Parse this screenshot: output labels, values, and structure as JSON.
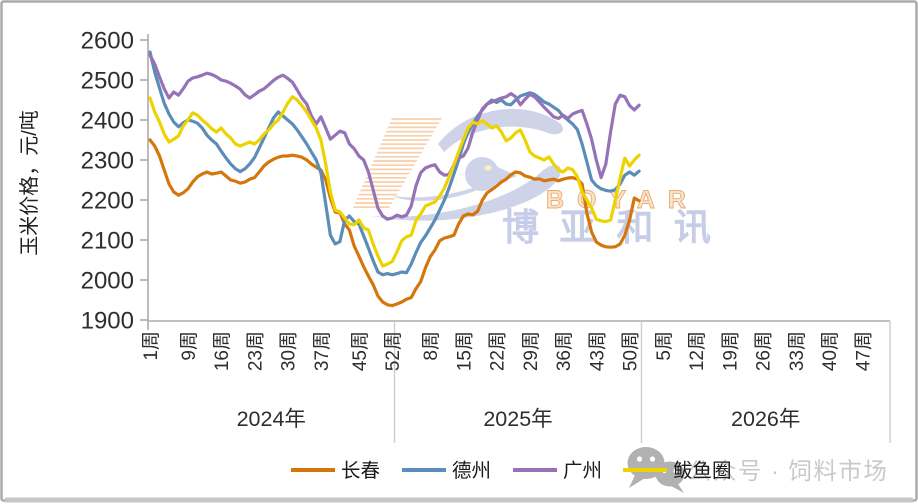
{
  "chart_data": {
    "type": "line",
    "title": "",
    "ylabel": "玉米价格，元/吨",
    "ylim": [
      1900,
      2600
    ],
    "yticks": [
      2600,
      2500,
      2400,
      2300,
      2200,
      2100,
      2000,
      1900
    ],
    "grid": false,
    "legend_position": "bottom",
    "x_axis": {
      "total_weeks": 156,
      "groups": [
        {
          "year_label": "2024年",
          "week_offset": 0,
          "tick_weeks": [
            1,
            9,
            16,
            23,
            30,
            37,
            45,
            52
          ],
          "tick_labels": [
            "1周",
            "9周",
            "16周",
            "23周",
            "30周",
            "37周",
            "45周",
            "52周"
          ]
        },
        {
          "year_label": "2025年",
          "week_offset": 52,
          "tick_weeks": [
            8,
            15,
            22,
            29,
            36,
            43,
            50
          ],
          "tick_labels": [
            "8周",
            "15周",
            "22周",
            "29周",
            "36周",
            "43周",
            "50周"
          ]
        },
        {
          "year_label": "2026年",
          "week_offset": 104,
          "tick_weeks": [
            5,
            12,
            19,
            26,
            33,
            40,
            47
          ],
          "tick_labels": [
            "5周",
            "12周",
            "19周",
            "26周",
            "33周",
            "40周",
            "47周"
          ]
        }
      ]
    },
    "series": [
      {
        "name": "长春",
        "key": "changchun",
        "color": "#D5760D",
        "start_index": 0,
        "values": [
          2350,
          2335,
          2310,
          2275,
          2240,
          2220,
          2212,
          2218,
          2228,
          2245,
          2258,
          2265,
          2270,
          2265,
          2267,
          2270,
          2260,
          2250,
          2247,
          2242,
          2245,
          2252,
          2256,
          2270,
          2285,
          2295,
          2302,
          2307,
          2310,
          2310,
          2312,
          2310,
          2307,
          2300,
          2290,
          2282,
          2275,
          2250,
          2205,
          2170,
          2168,
          2140,
          2125,
          2085,
          2060,
          2033,
          2010,
          1988,
          1960,
          1945,
          1938,
          1936,
          1940,
          1945,
          1952,
          1956,
          1978,
          1996,
          2030,
          2058,
          2075,
          2098,
          2105,
          2108,
          2112,
          2140,
          2160,
          2165,
          2163,
          2172,
          2200,
          2218,
          2226,
          2235,
          2245,
          2252,
          2263,
          2270,
          2268,
          2260,
          2257,
          2252,
          2253,
          2248,
          2250,
          2252,
          2248,
          2252,
          2255,
          2256,
          2252,
          2240,
          2167,
          2120,
          2095,
          2087,
          2083,
          2082,
          2083,
          2090,
          2112,
          2150,
          2205,
          2198
        ]
      },
      {
        "name": "德州",
        "key": "dezhou",
        "color": "#5B8DB8",
        "start_index": 0,
        "values": [
          2570,
          2520,
          2480,
          2442,
          2415,
          2395,
          2383,
          2393,
          2400,
          2397,
          2392,
          2380,
          2362,
          2350,
          2340,
          2322,
          2305,
          2290,
          2278,
          2271,
          2278,
          2290,
          2306,
          2330,
          2355,
          2380,
          2405,
          2420,
          2410,
          2400,
          2390,
          2375,
          2358,
          2340,
          2320,
          2300,
          2268,
          2190,
          2112,
          2090,
          2096,
          2150,
          2160,
          2146,
          2140,
          2110,
          2080,
          2048,
          2020,
          2013,
          2016,
          2013,
          2016,
          2020,
          2018,
          2040,
          2068,
          2094,
          2110,
          2130,
          2150,
          2175,
          2200,
          2230,
          2265,
          2300,
          2340,
          2370,
          2390,
          2410,
          2425,
          2440,
          2450,
          2444,
          2450,
          2440,
          2438,
          2450,
          2460,
          2464,
          2468,
          2464,
          2455,
          2445,
          2440,
          2432,
          2424,
          2410,
          2400,
          2390,
          2376,
          2340,
          2295,
          2250,
          2236,
          2228,
          2224,
          2222,
          2226,
          2240,
          2262,
          2270,
          2262,
          2272
        ]
      },
      {
        "name": "广州",
        "key": "guangzhou",
        "color": "#9673B7",
        "start_index": 0,
        "values": [
          2562,
          2540,
          2508,
          2478,
          2455,
          2470,
          2462,
          2478,
          2497,
          2505,
          2508,
          2512,
          2517,
          2514,
          2508,
          2500,
          2497,
          2492,
          2485,
          2477,
          2463,
          2455,
          2463,
          2472,
          2478,
          2488,
          2499,
          2507,
          2512,
          2504,
          2494,
          2475,
          2455,
          2440,
          2410,
          2390,
          2408,
          2380,
          2352,
          2362,
          2372,
          2368,
          2340,
          2328,
          2310,
          2300,
          2270,
          2225,
          2180,
          2160,
          2152,
          2155,
          2162,
          2158,
          2162,
          2185,
          2235,
          2268,
          2280,
          2285,
          2288,
          2270,
          2262,
          2264,
          2288,
          2305,
          2310,
          2330,
          2370,
          2400,
          2428,
          2440,
          2445,
          2450,
          2455,
          2458,
          2466,
          2458,
          2438,
          2452,
          2464,
          2458,
          2445,
          2432,
          2420,
          2408,
          2404,
          2412,
          2404,
          2415,
          2420,
          2424,
          2390,
          2352,
          2300,
          2256,
          2290,
          2370,
          2440,
          2462,
          2458,
          2436,
          2425,
          2437
        ]
      },
      {
        "name": "鲅鱼圈",
        "key": "bayuquan",
        "color": "#EDD302",
        "start_index": 0,
        "values": [
          2455,
          2420,
          2395,
          2365,
          2345,
          2352,
          2360,
          2385,
          2400,
          2418,
          2412,
          2400,
          2390,
          2378,
          2370,
          2380,
          2365,
          2355,
          2340,
          2335,
          2340,
          2345,
          2340,
          2350,
          2365,
          2375,
          2390,
          2400,
          2420,
          2442,
          2458,
          2450,
          2436,
          2420,
          2400,
          2380,
          2350,
          2290,
          2220,
          2175,
          2170,
          2155,
          2140,
          2138,
          2150,
          2130,
          2125,
          2090,
          2060,
          2035,
          2040,
          2046,
          2070,
          2098,
          2108,
          2112,
          2148,
          2165,
          2185,
          2190,
          2195,
          2210,
          2230,
          2258,
          2288,
          2320,
          2352,
          2380,
          2395,
          2390,
          2398,
          2390,
          2380,
          2385,
          2370,
          2348,
          2355,
          2368,
          2375,
          2350,
          2320,
          2310,
          2305,
          2300,
          2308,
          2290,
          2275,
          2270,
          2280,
          2276,
          2258,
          2220,
          2200,
          2180,
          2152,
          2148,
          2146,
          2150,
          2200,
          2255,
          2305,
          2285,
          2300,
          2312
        ]
      }
    ]
  },
  "watermark": {
    "en": "BOYAR",
    "cn": "博 亚 和 讯"
  },
  "footer_watermark": {
    "icon": "wechat-icon",
    "text": "公众号 · 饲料市场"
  }
}
